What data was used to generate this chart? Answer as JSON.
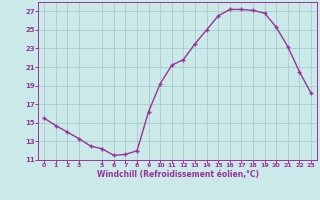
{
  "x": [
    0,
    1,
    2,
    3,
    4,
    5,
    6,
    7,
    8,
    9,
    10,
    11,
    12,
    13,
    14,
    15,
    16,
    17,
    18,
    19,
    20,
    21,
    22,
    23
  ],
  "y": [
    15.5,
    14.7,
    14.0,
    13.3,
    12.5,
    12.2,
    11.5,
    11.6,
    12.0,
    16.2,
    19.2,
    21.2,
    21.8,
    23.5,
    25.0,
    26.5,
    27.2,
    27.2,
    27.1,
    26.8,
    25.3,
    23.2,
    20.5,
    18.2
  ],
  "line_color": "#993399",
  "marker": "+",
  "xlabel": "Windchill (Refroidissement éolien,°C)",
  "xlim": [
    -0.5,
    23.5
  ],
  "ylim": [
    11,
    28
  ],
  "yticks": [
    11,
    13,
    15,
    17,
    19,
    21,
    23,
    25,
    27
  ],
  "xticks": [
    0,
    1,
    2,
    3,
    5,
    6,
    7,
    8,
    9,
    10,
    11,
    12,
    13,
    14,
    15,
    16,
    17,
    18,
    19,
    20,
    21,
    22,
    23
  ],
  "bg_color": "#cce9e9",
  "grid_color": "#aacccc",
  "tick_color": "#993399",
  "label_color": "#993399"
}
